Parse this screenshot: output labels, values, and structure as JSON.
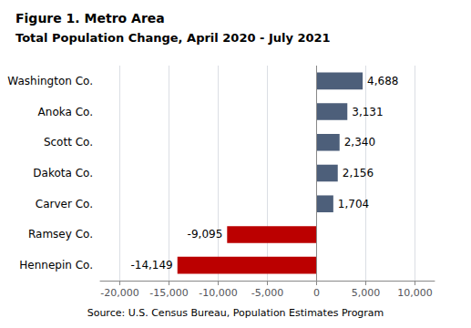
{
  "chart_data": {
    "type": "bar",
    "orientation": "horizontal",
    "title": "Figure 1. Metro Area",
    "subtitle": "Total Population Change, April 2020 - July 2021",
    "annotations": [
      "Source: U.S. Census Bureau, Population Estimates Program"
    ],
    "categories": [
      "Hennepin Co.",
      "Ramsey Co.",
      "Carver Co.",
      "Dakota Co.",
      "Scott Co.",
      "Anoka Co.",
      "Washington Co."
    ],
    "values": [
      -14149,
      -9095,
      1704,
      2156,
      2340,
      3131,
      4688
    ],
    "value_labels": [
      "-14,149",
      "-9,095",
      "1,704",
      "2,156",
      "2,340",
      "3,131",
      "4,688"
    ],
    "colors": [
      "#bb0000",
      "#bb0000",
      "#4d5f7a",
      "#4d5f7a",
      "#4d5f7a",
      "#4d5f7a",
      "#4d5f7a"
    ],
    "data_labels": true,
    "xlim": [
      -22000,
      12000
    ],
    "xticks": [
      {
        "value": -20000,
        "label": "-20,000"
      },
      {
        "value": -15000,
        "label": "-15,000"
      },
      {
        "value": -10000,
        "label": "-10,000"
      },
      {
        "value": -5000,
        "label": "-5,000"
      },
      0,
      {
        "value": 5000,
        "label": "5,000"
      },
      {
        "value": 10000,
        "label": "10,000"
      }
    ],
    "grid": true
  }
}
